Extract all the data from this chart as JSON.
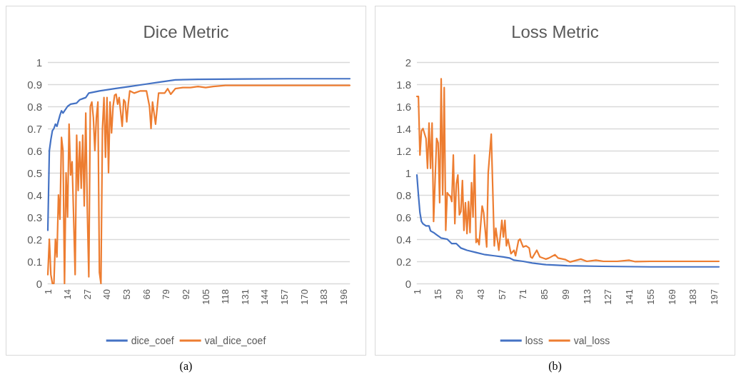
{
  "chart_data": [
    {
      "type": "line",
      "title": "Dice Metric",
      "xlim": [
        1,
        200
      ],
      "xticks": [
        1,
        14,
        27,
        40,
        53,
        66,
        79,
        92,
        105,
        118,
        131,
        144,
        157,
        170,
        183,
        196
      ],
      "ylim": [
        0,
        1
      ],
      "yticks": [
        0,
        0.1,
        0.2,
        0.3,
        0.4,
        0.5,
        0.6,
        0.7,
        0.8,
        0.9,
        1
      ],
      "grid": "y",
      "legend": "bottom",
      "marker": "none",
      "line_style": "solid",
      "annotations": [
        "(a)"
      ],
      "series": [
        {
          "name": "dice_coef",
          "color": "#4472c4",
          "x": [
            1,
            2,
            3,
            4,
            5,
            6,
            7,
            9,
            10,
            11,
            13,
            14,
            16,
            20,
            22,
            24,
            26,
            28,
            35,
            45,
            55,
            65,
            75,
            85,
            100,
            130,
            160,
            200
          ],
          "values": [
            0.24,
            0.6,
            0.65,
            0.69,
            0.7,
            0.72,
            0.71,
            0.76,
            0.78,
            0.77,
            0.79,
            0.8,
            0.81,
            0.815,
            0.83,
            0.835,
            0.84,
            0.86,
            0.87,
            0.88,
            0.89,
            0.9,
            0.91,
            0.92,
            0.922,
            0.924,
            0.925,
            0.925
          ]
        },
        {
          "name": "val_dice_coef",
          "color": "#ed7d31",
          "x": [
            1,
            2,
            3,
            4,
            5,
            6,
            7,
            8,
            9,
            10,
            11,
            12,
            13,
            14,
            15,
            16,
            17,
            18,
            19,
            20,
            21,
            22,
            23,
            24,
            25,
            26,
            27,
            28,
            29,
            30,
            31,
            32,
            33,
            34,
            35,
            36,
            37,
            38,
            39,
            40,
            41,
            42,
            43,
            44,
            45,
            46,
            47,
            48,
            50,
            51,
            52,
            53,
            54,
            55,
            58,
            62,
            66,
            68,
            69,
            70,
            72,
            74,
            78,
            80,
            82,
            85,
            90,
            95,
            100,
            105,
            110,
            118,
            130,
            150,
            170,
            200
          ],
          "values": [
            0.04,
            0.2,
            0.04,
            0,
            0,
            0.2,
            0.12,
            0.4,
            0.29,
            0.66,
            0.6,
            0,
            0.5,
            0.3,
            0.72,
            0.49,
            0.55,
            0.3,
            0.04,
            0.67,
            0.42,
            0.64,
            0.43,
            0.67,
            0.35,
            0.77,
            0.34,
            0.03,
            0.8,
            0.82,
            0.75,
            0.6,
            0.75,
            0.82,
            0.05,
            0,
            0.7,
            0.84,
            0.57,
            0.84,
            0.5,
            0.82,
            0.68,
            0.8,
            0.85,
            0.855,
            0.81,
            0.84,
            0.71,
            0.83,
            0.82,
            0.73,
            0.81,
            0.87,
            0.86,
            0.87,
            0.87,
            0.8,
            0.7,
            0.82,
            0.72,
            0.86,
            0.86,
            0.88,
            0.855,
            0.88,
            0.885,
            0.885,
            0.89,
            0.885,
            0.89,
            0.895,
            0.895,
            0.895,
            0.895,
            0.895
          ]
        }
      ]
    },
    {
      "type": "line",
      "title": "Loss Metric",
      "xlim": [
        1,
        200
      ],
      "xticks": [
        1,
        15,
        29,
        43,
        57,
        71,
        85,
        99,
        113,
        127,
        141,
        155,
        169,
        183,
        197
      ],
      "ylim": [
        0,
        2
      ],
      "yticks": [
        0,
        0.2,
        0.4,
        0.6,
        0.8,
        1,
        1.2,
        1.4,
        1.6,
        1.8,
        2
      ],
      "grid": "y",
      "legend": "bottom",
      "marker": "none",
      "line_style": "solid",
      "annotations": [
        "(b)"
      ],
      "series": [
        {
          "name": "loss",
          "color": "#4472c4",
          "x": [
            1,
            2,
            3,
            4,
            5,
            7,
            9,
            10,
            12,
            14,
            17,
            21,
            24,
            27,
            30,
            34,
            40,
            46,
            52,
            58,
            62,
            65,
            71,
            77,
            86,
            100,
            123,
            155,
            200
          ],
          "values": [
            0.98,
            0.8,
            0.64,
            0.56,
            0.54,
            0.52,
            0.52,
            0.475,
            0.46,
            0.44,
            0.41,
            0.4,
            0.36,
            0.36,
            0.32,
            0.3,
            0.28,
            0.26,
            0.25,
            0.24,
            0.23,
            0.21,
            0.2,
            0.185,
            0.17,
            0.16,
            0.155,
            0.15,
            0.15
          ]
        },
        {
          "name": "val_loss",
          "color": "#ed7d31",
          "x": [
            1,
            2,
            3,
            4,
            5,
            7,
            8,
            9,
            10,
            11,
            12,
            14,
            15,
            16,
            17,
            18,
            19,
            20,
            21,
            22,
            23,
            24,
            25,
            26,
            27,
            28,
            29,
            30,
            31,
            32,
            33,
            34,
            35,
            36,
            37,
            38,
            39,
            40,
            41,
            42,
            44,
            45,
            47,
            48,
            50,
            52,
            53,
            55,
            57,
            58,
            59,
            60,
            61,
            63,
            65,
            66,
            68,
            69,
            71,
            73,
            75,
            76,
            77,
            80,
            82,
            86,
            88,
            92,
            94,
            99,
            102,
            109,
            113,
            119,
            124,
            133,
            141,
            145,
            155,
            170,
            186,
            200
          ],
          "values": [
            1.69,
            1.69,
            1.16,
            1.38,
            1.4,
            1.31,
            1.04,
            1.45,
            1.04,
            1.45,
            0.56,
            1.31,
            1.27,
            0.73,
            1.85,
            0.8,
            1.77,
            0.48,
            0.82,
            0.8,
            0.79,
            0.74,
            1.16,
            0.54,
            0.9,
            0.98,
            0.62,
            0.65,
            0.93,
            0.48,
            0.73,
            0.45,
            0.74,
            0.46,
            0.91,
            0.6,
            1.16,
            0.37,
            0.4,
            0.35,
            0.7,
            0.64,
            0.33,
            1.0,
            1.35,
            0.34,
            0.5,
            0.3,
            0.57,
            0.42,
            0.57,
            0.34,
            0.4,
            0.27,
            0.3,
            0.25,
            0.39,
            0.4,
            0.33,
            0.34,
            0.32,
            0.24,
            0.23,
            0.3,
            0.24,
            0.22,
            0.23,
            0.26,
            0.23,
            0.215,
            0.194,
            0.22,
            0.2,
            0.21,
            0.2,
            0.2,
            0.21,
            0.197,
            0.2,
            0.2,
            0.2,
            0.2
          ]
        }
      ]
    }
  ]
}
